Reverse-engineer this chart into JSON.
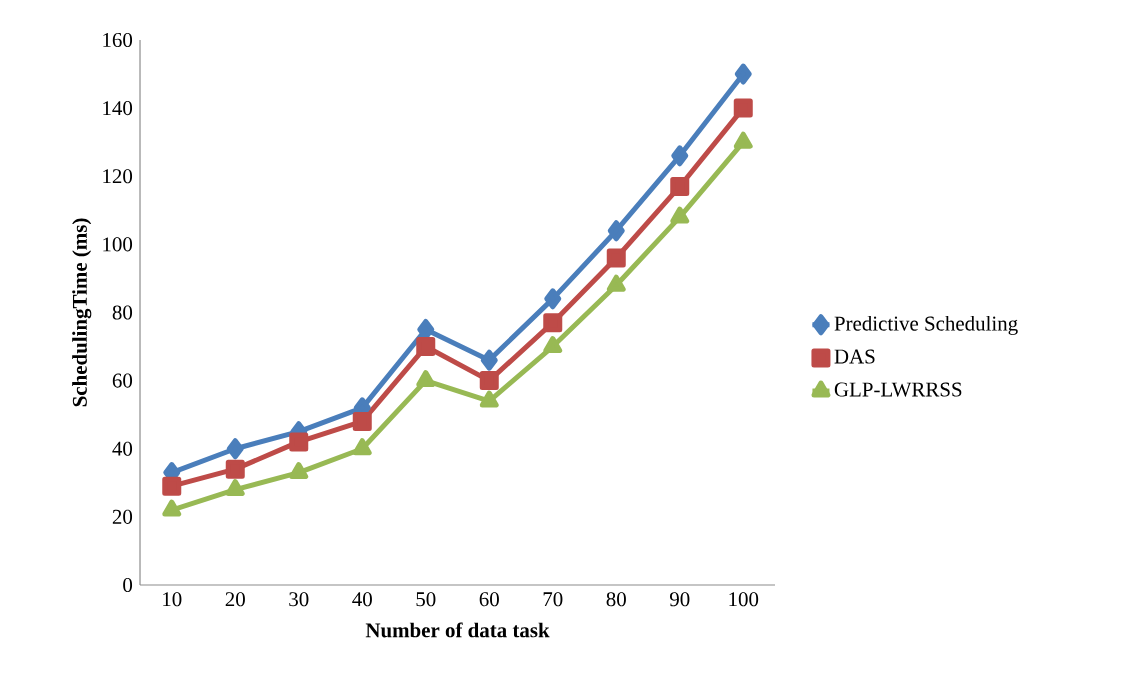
{
  "chart_data": {
    "type": "line",
    "xlabel": "Number of data task",
    "ylabel": "SchedulingTime (ms)",
    "categories": [
      "10",
      "20",
      "30",
      "40",
      "50",
      "60",
      "70",
      "80",
      "90",
      "100"
    ],
    "ylim": [
      0,
      160
    ],
    "yticks": [
      0,
      20,
      40,
      60,
      80,
      100,
      120,
      140,
      160
    ],
    "grid": false,
    "legend": "right",
    "line_style": "solid",
    "series": [
      {
        "name": "Predictive Scheduling",
        "color": "#4a7ebb",
        "marker": "diamond",
        "values": [
          33,
          40,
          45,
          52,
          75,
          66,
          84,
          104,
          126,
          150
        ]
      },
      {
        "name": "DAS",
        "color": "#be4b48",
        "marker": "square",
        "values": [
          29,
          34,
          42,
          48,
          70,
          60,
          77,
          96,
          117,
          140
        ]
      },
      {
        "name": "GLP-LWRRSS",
        "color": "#98b954",
        "marker": "triangle",
        "values": [
          22,
          28,
          33,
          40,
          60,
          54,
          70,
          88,
          108,
          130
        ]
      }
    ]
  }
}
